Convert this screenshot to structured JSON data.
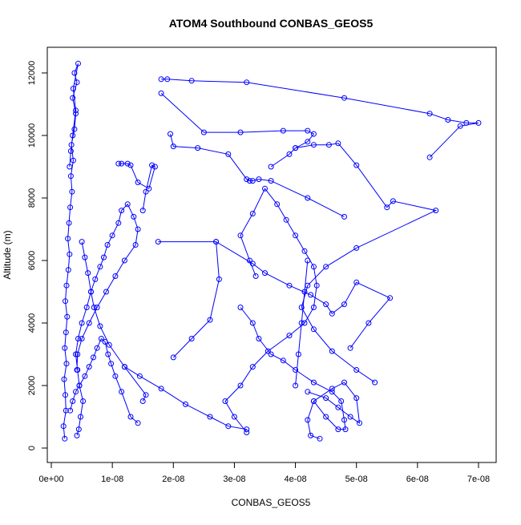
{
  "chart_data": {
    "type": "line",
    "title": "ATOM4 Southbound CONBAS_GEOS5",
    "xlabel": "CONBAS_GEOS5",
    "ylabel": "Altitude (m)",
    "xlim": [
      0,
      7.2e-08
    ],
    "ylim": [
      0,
      12500
    ],
    "x_ticks": [
      {
        "value": 0,
        "label": "0e+00"
      },
      {
        "value": 1e-08,
        "label": "1e-08"
      },
      {
        "value": 2e-08,
        "label": "2e-08"
      },
      {
        "value": 3e-08,
        "label": "3e-08"
      },
      {
        "value": 4e-08,
        "label": "4e-08"
      },
      {
        "value": 5e-08,
        "label": "5e-08"
      },
      {
        "value": 6e-08,
        "label": "6e-08"
      },
      {
        "value": 7e-08,
        "label": "7e-08"
      }
    ],
    "y_ticks": [
      {
        "value": 0,
        "label": "0"
      },
      {
        "value": 2000,
        "label": "2000"
      },
      {
        "value": 4000,
        "label": "4000"
      },
      {
        "value": 6000,
        "label": "6000"
      },
      {
        "value": 8000,
        "label": "8000"
      },
      {
        "value": 10000,
        "label": "10000"
      },
      {
        "value": 12000,
        "label": "12000"
      }
    ],
    "grid": false,
    "legend": "none",
    "color": "#0000ff",
    "marker": "open-circle",
    "series": [
      {
        "x": [
          2.2e-09,
          2e-09,
          2.4e-09,
          2.3e-09,
          2.1e-09,
          2.5e-09,
          2.2e-09,
          2.4e-09,
          2.6e-09,
          2.3e-09,
          2.5e-09,
          2.8e-09,
          3e-09,
          2.7e-09,
          2.9e-09,
          3.1e-09,
          3.4e-09,
          3.2e-09,
          3.6e-09,
          3.3e-09,
          3.8e-09,
          4e-09,
          3.5e-09,
          4.2e-09,
          3.8e-09,
          4.4e-09,
          3.6e-09,
          4e-09,
          3.5e-09,
          3.2e-09,
          3e-09
        ],
        "y": [
          300,
          700,
          1200,
          1700,
          2200,
          2700,
          3200,
          3700,
          4200,
          4700,
          5200,
          5700,
          6200,
          6700,
          7200,
          7700,
          8200,
          8700,
          9200,
          9700,
          10200,
          10700,
          11200,
          11700,
          12000,
          12300,
          11500,
          10800,
          10000,
          9500,
          9000
        ]
      },
      {
        "x": [
          4.2e-09,
          4.5e-09,
          4.8e-09,
          5.2e-09,
          4.6e-09,
          4.3e-09,
          4e-09,
          4.4e-09,
          5e-09,
          5.8e-09,
          6.5e-09,
          7.2e-09,
          8e-09,
          8.6e-09,
          9.2e-09,
          1e-08,
          1.1e-08,
          1.15e-08,
          1.25e-08,
          1.35e-08,
          1.42e-08,
          1.38e-08,
          1.2e-08,
          1.05e-08,
          9e-09,
          7.5e-09,
          6.2e-09,
          5e-09,
          4.3e-09,
          4.2e-09
        ],
        "y": [
          400,
          600,
          1000,
          1500,
          2000,
          2500,
          3000,
          3500,
          4000,
          4500,
          5000,
          5400,
          5800,
          6100,
          6500,
          6800,
          7200,
          7600,
          7800,
          7400,
          7000,
          6500,
          6000,
          5500,
          5000,
          4500,
          4000,
          3500,
          3000,
          2500
        ]
      },
      {
        "x": [
          3.1e-09,
          3.5e-09,
          4e-09,
          4.6e-09,
          5.5e-09,
          6.2e-09,
          6.9e-09,
          7.5e-09,
          8.2e-09,
          8.8e-09,
          9.3e-09,
          9.8e-09,
          1.05e-08,
          1.15e-08,
          1.3e-08,
          1.42e-08
        ],
        "y": [
          1200,
          1500,
          1800,
          2000,
          2300,
          2600,
          2900,
          3200,
          3500,
          3400,
          3000,
          2700,
          2300,
          1800,
          1000,
          800
        ]
      },
      {
        "x": [
          1.8e-08,
          1.9e-08,
          2.3e-08,
          3.2e-08,
          4.8e-08,
          6.2e-08,
          6.5e-08,
          6.8e-08,
          7e-08,
          6.7e-08,
          6.2e-08
        ],
        "y": [
          11800,
          11800,
          11750,
          11700,
          11200,
          10700,
          10500,
          10400,
          10400,
          10300,
          9300
        ]
      },
      {
        "x": [
          1.8e-08,
          2.5e-08,
          3.1e-08,
          3.8e-08,
          4.2e-08,
          4.3e-08,
          4.2e-08,
          4e-08,
          3.9e-08,
          3.6e-08
        ],
        "y": [
          11350,
          10100,
          10100,
          10150,
          10150,
          10050,
          9800,
          9600,
          9400,
          9000
        ]
      },
      {
        "x": [
          1.95e-08,
          2e-08,
          2.4e-08,
          2.9e-08,
          3.2e-08,
          3.25e-08,
          3.3e-08,
          3.4e-08,
          3.6e-08,
          4.2e-08,
          4.8e-08
        ],
        "y": [
          10050,
          9650,
          9600,
          9400,
          8600,
          8550,
          8550,
          8600,
          8550,
          8000,
          7400
        ]
      },
      {
        "x": [
          1.1e-08,
          1.15e-08,
          1.25e-08,
          1.3e-08,
          1.42e-08,
          1.6e-08,
          1.7e-08,
          1.65e-08,
          1.55e-08,
          1.5e-08
        ],
        "y": [
          9100,
          9100,
          9100,
          9050,
          8500,
          8300,
          9000,
          9050,
          8200,
          7600
        ]
      },
      {
        "x": [
          4e-08,
          4.3e-08,
          4.55e-08,
          4.7e-08,
          5e-08,
          5.5e-08,
          5.6e-08,
          6.3e-08,
          5e-08,
          4.5e-08,
          4.2e-08,
          4.1e-08,
          4.3e-08,
          4.6e-08,
          5e-08,
          5.3e-08
        ],
        "y": [
          9600,
          9700,
          9700,
          9750,
          9050,
          7700,
          7900,
          7600,
          6400,
          5800,
          5200,
          4500,
          3800,
          3100,
          2500,
          2100
        ]
      },
      {
        "x": [
          1.75e-08,
          2.7e-08,
          3.3e-08,
          3.5e-08,
          3.9e-08,
          4.25e-08,
          4.5e-08,
          4.6e-08,
          4.8e-08,
          5e-08,
          5.55e-08,
          5.2e-08,
          4.9e-08
        ],
        "y": [
          6600,
          6600,
          5900,
          5600,
          5200,
          4900,
          4600,
          4300,
          4600,
          5300,
          4800,
          4000,
          3200
        ]
      },
      {
        "x": [
          4.2e-08,
          4.5e-08,
          4.7e-08,
          4.9e-08,
          5.05e-08,
          5e-08,
          4.8e-08,
          4.6e-08,
          4.3e-08,
          4.2e-08,
          4.25e-08,
          4.4e-08
        ],
        "y": [
          1800,
          1600,
          1300,
          1000,
          800,
          1600,
          2100,
          1900,
          1500,
          900,
          400,
          300
        ]
      },
      {
        "x": [
          3.1e-08,
          3.3e-08,
          3.4e-08,
          3.6e-08,
          3.8e-08,
          4e-08,
          4.3e-08,
          4.6e-08,
          4.75e-08,
          4.8e-08,
          4.82e-08,
          4.7e-08,
          4.5e-08,
          4.3e-08
        ],
        "y": [
          4500,
          4000,
          3500,
          3000,
          2800,
          2500,
          2100,
          1800,
          1500,
          900,
          600,
          600,
          1000,
          1500
        ]
      },
      {
        "x": [
          3.2e-08,
          3e-08,
          2.85e-08,
          3.1e-08,
          3.3e-08,
          3.55e-08,
          3.9e-08,
          4.15e-08,
          4.3e-08,
          4.35e-08,
          4.3e-08,
          4.15e-08,
          4e-08,
          3.85e-08,
          3.7e-08,
          3.5e-08,
          3.3e-08,
          3.1e-08,
          3.25e-08,
          3.35e-08
        ],
        "y": [
          500,
          1000,
          1500,
          2000,
          2600,
          3100,
          3600,
          4000,
          4500,
          5200,
          5800,
          6300,
          6800,
          7300,
          7800,
          8300,
          7500,
          6800,
          6000,
          5500
        ]
      },
      {
        "x": [
          1.5e-08,
          1.55e-08,
          1.2e-08,
          9.5e-09,
          8e-09,
          7e-09,
          6.5e-09,
          6e-09,
          5.5e-09,
          5e-09
        ],
        "y": [
          1500,
          1700,
          2600,
          3300,
          3900,
          4500,
          5000,
          5600,
          6100,
          6600
        ]
      },
      {
        "x": [
          1.2e-08,
          1.45e-08,
          1.8e-08,
          2.2e-08,
          2.6e-08,
          2.9e-08,
          3.2e-08
        ],
        "y": [
          2600,
          2300,
          1900,
          1400,
          1000,
          700,
          600
        ]
      },
      {
        "x": [
          2e-08,
          2.3e-08,
          2.6e-08,
          2.75e-08,
          2.7e-08
        ],
        "y": [
          2900,
          3500,
          4100,
          5400,
          6600
        ]
      },
      {
        "x": [
          4e-08,
          4.05e-08,
          4.1e-08,
          4.15e-08,
          4.2e-08
        ],
        "y": [
          2000,
          3000,
          4000,
          5000,
          6000
        ]
      }
    ]
  }
}
